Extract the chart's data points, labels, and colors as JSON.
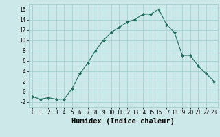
{
  "x": [
    0,
    1,
    2,
    3,
    4,
    5,
    6,
    7,
    8,
    9,
    10,
    11,
    12,
    13,
    14,
    15,
    16,
    17,
    18,
    19,
    20,
    21,
    22,
    23
  ],
  "y": [
    -1,
    -1.5,
    -1.2,
    -1.5,
    -1.5,
    0.5,
    3.5,
    5.5,
    8,
    10,
    11.5,
    12.5,
    13.5,
    14,
    15,
    15,
    16,
    13,
    11.5,
    7,
    7,
    5,
    3.5,
    2
  ],
  "line_color": "#1a6b5a",
  "marker": "D",
  "marker_size": 2,
  "xlim": [
    -0.5,
    23.5
  ],
  "ylim": [
    -3,
    17
  ],
  "yticks": [
    -2,
    0,
    2,
    4,
    6,
    8,
    10,
    12,
    14,
    16
  ],
  "xticks": [
    0,
    1,
    2,
    3,
    4,
    5,
    6,
    7,
    8,
    9,
    10,
    11,
    12,
    13,
    14,
    15,
    16,
    17,
    18,
    19,
    20,
    21,
    22,
    23
  ],
  "xlabel": "Humidex (Indice chaleur)",
  "bg_color": "#cce8e8",
  "grid_color": "#99cccc",
  "tick_fontsize": 5.5,
  "label_fontsize": 7.5
}
